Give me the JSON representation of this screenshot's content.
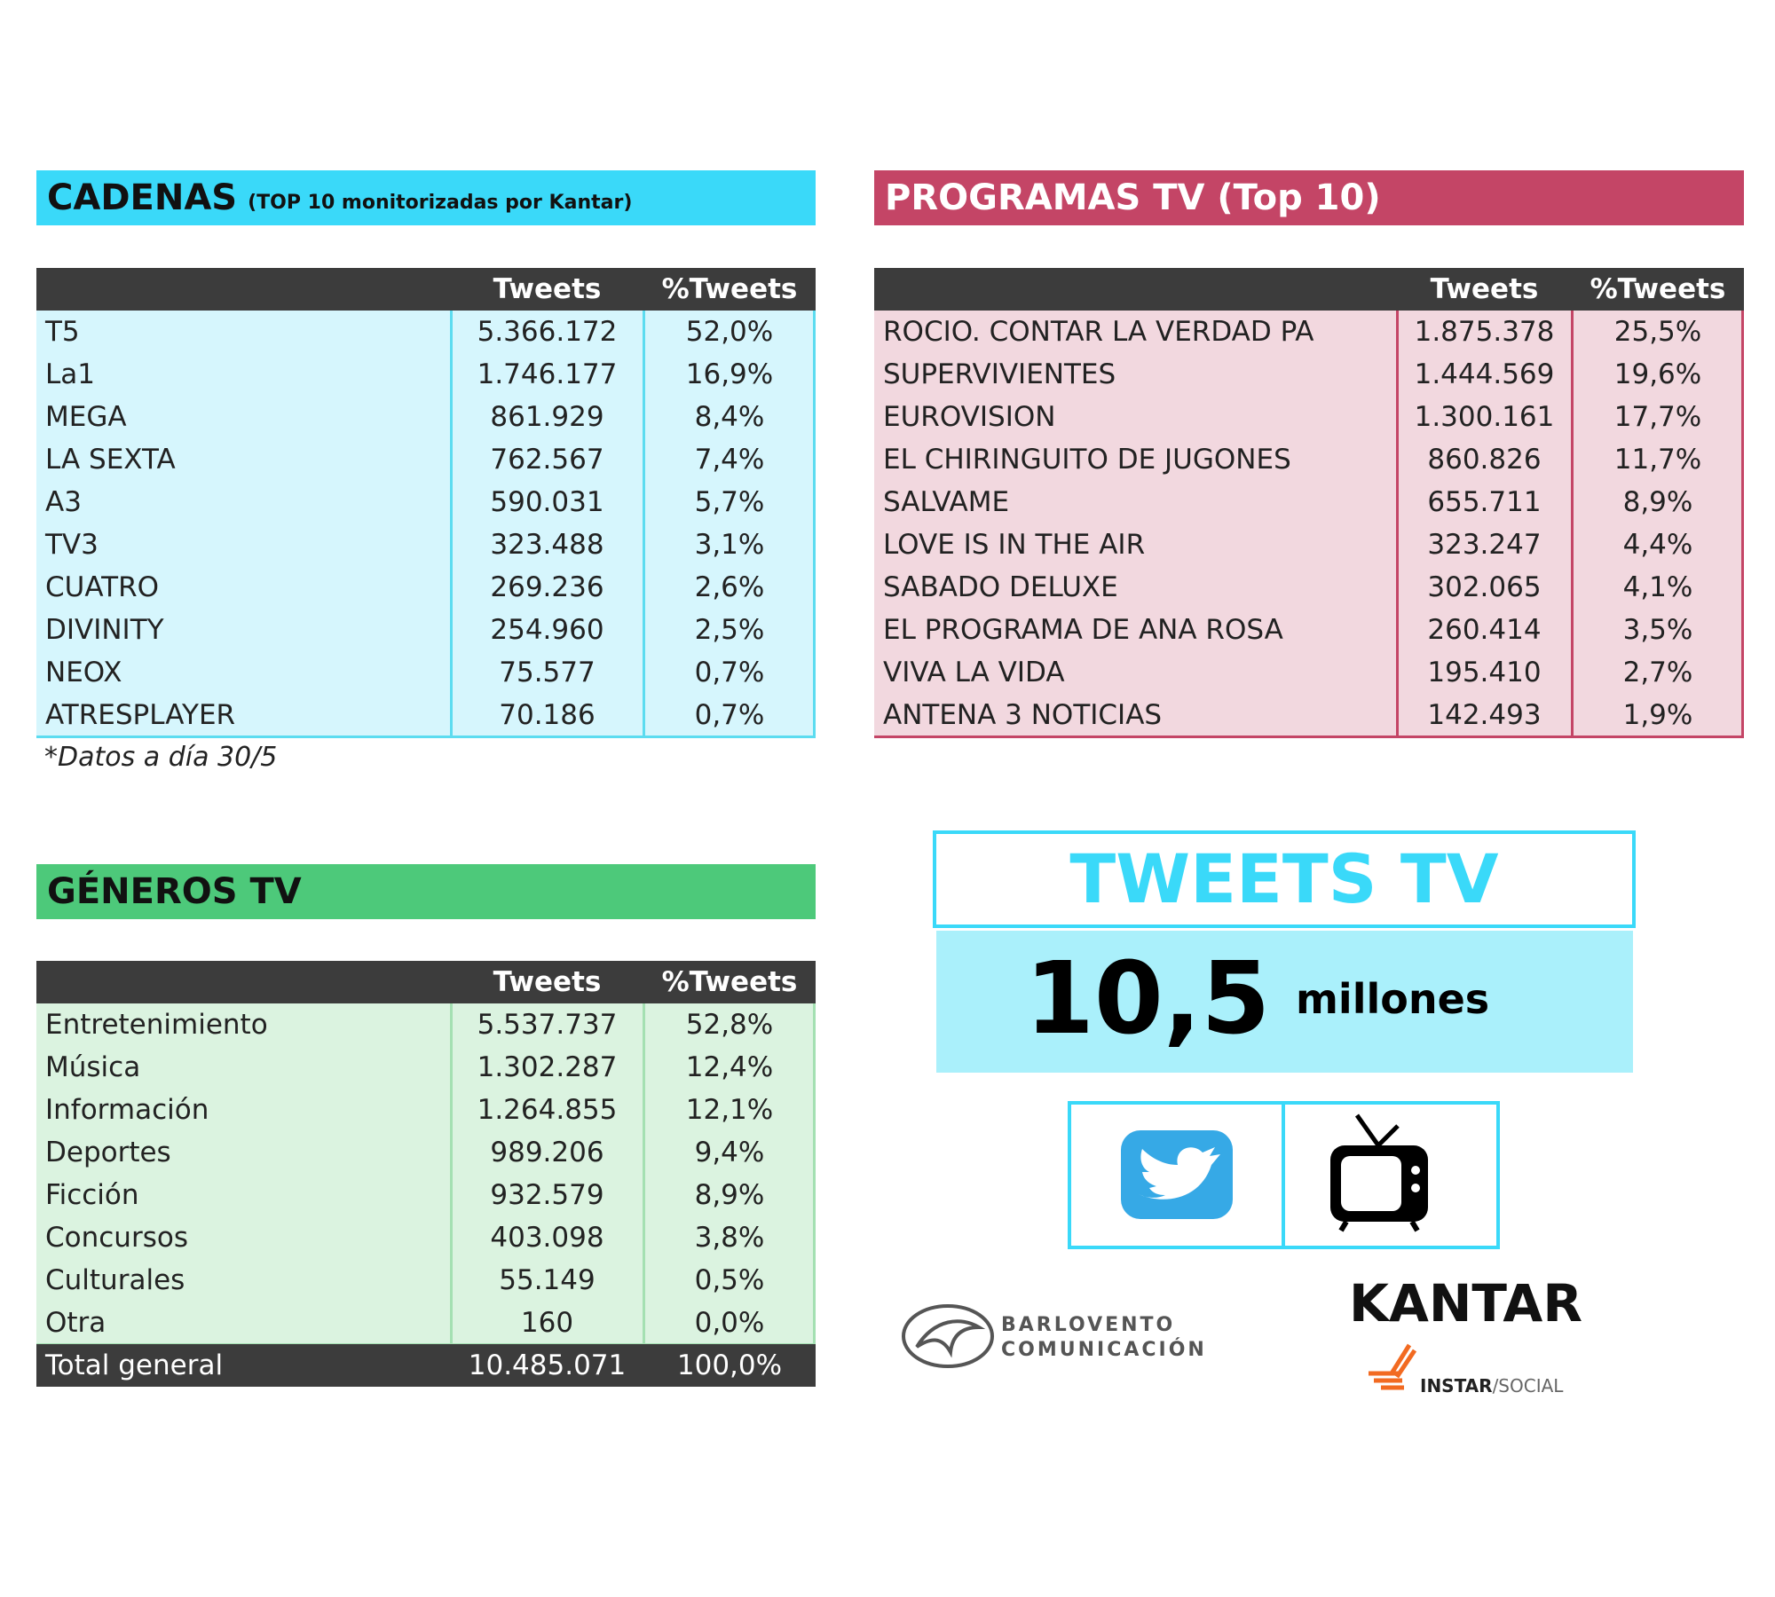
{
  "cadenas": {
    "title": "CADENAS",
    "subtitle": "(TOP 10 monitorizadas por Kantar)",
    "columns": [
      "Tweets",
      "%Tweets"
    ],
    "rows": [
      [
        "T5",
        "5.366.172",
        "52,0%"
      ],
      [
        "La1",
        "1.746.177",
        "16,9%"
      ],
      [
        "MEGA",
        "861.929",
        "8,4%"
      ],
      [
        "LA SEXTA",
        "762.567",
        "7,4%"
      ],
      [
        "A3",
        "590.031",
        "5,7%"
      ],
      [
        "TV3",
        "323.488",
        "3,1%"
      ],
      [
        "CUATRO",
        "269.236",
        "2,6%"
      ],
      [
        "DIVINITY",
        "254.960",
        "2,5%"
      ],
      [
        "NEOX",
        "75.577",
        "0,7%"
      ],
      [
        "ATRESPLAYER",
        "70.186",
        "0,7%"
      ]
    ],
    "note": "*Datos a día 30/5"
  },
  "programas": {
    "title": "PROGRAMAS TV (Top 10)",
    "columns": [
      "Tweets",
      "%Tweets"
    ],
    "rows": [
      [
        "ROCIO. CONTAR LA VERDAD PA",
        "1.875.378",
        "25,5%"
      ],
      [
        "SUPERVIVIENTES",
        "1.444.569",
        "19,6%"
      ],
      [
        "EUROVISION",
        "1.300.161",
        "17,7%"
      ],
      [
        "EL CHIRINGUITO DE JUGONES",
        "860.826",
        "11,7%"
      ],
      [
        "SALVAME",
        "655.711",
        "8,9%"
      ],
      [
        "LOVE IS IN THE AIR",
        "323.247",
        "4,4%"
      ],
      [
        "SABADO DELUXE",
        "302.065",
        "4,1%"
      ],
      [
        "EL PROGRAMA DE ANA ROSA",
        "260.414",
        "3,5%"
      ],
      [
        "VIVA LA VIDA",
        "195.410",
        "2,7%"
      ],
      [
        "ANTENA 3 NOTICIAS",
        "142.493",
        "1,9%"
      ]
    ]
  },
  "generos": {
    "title": "GÉNEROS TV",
    "columns": [
      "Tweets",
      "%Tweets"
    ],
    "rows": [
      [
        "Entretenimiento",
        "5.537.737",
        "52,8%"
      ],
      [
        "Música",
        "1.302.287",
        "12,4%"
      ],
      [
        "Información",
        "1.264.855",
        "12,1%"
      ],
      [
        "Deportes",
        "989.206",
        "9,4%"
      ],
      [
        "Ficción",
        "932.579",
        "8,9%"
      ],
      [
        "Concursos",
        "403.098",
        "3,8%"
      ],
      [
        "Culturales",
        "55.149",
        "0,5%"
      ],
      [
        "Otra",
        "160",
        "0,0%"
      ]
    ],
    "total": [
      "Total general",
      "10.485.071",
      "100,0%"
    ]
  },
  "summary": {
    "title": "TWEETS TV",
    "value": "10,5",
    "unit": "millones"
  },
  "logos": {
    "barlovento": [
      "BARLOVENTO",
      "COMUNICACIÓN"
    ],
    "kantar": "KANTAR",
    "instar": "INSTAR",
    "social": "/SOCIAL"
  }
}
